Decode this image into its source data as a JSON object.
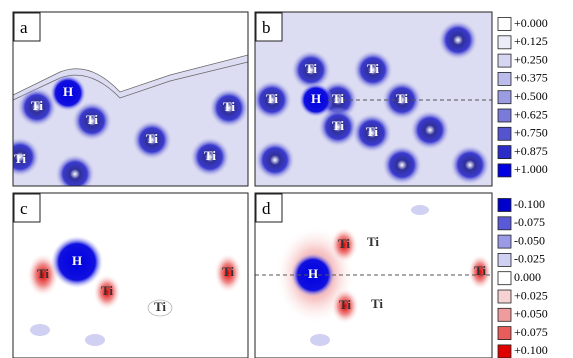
{
  "panels": [
    {
      "label": "a",
      "atoms": [
        "H",
        "Ti",
        "Ti",
        "Ti",
        "Ti",
        "Ti",
        "Ti"
      ]
    },
    {
      "label": "b",
      "atoms": [
        "H",
        "Ti",
        "Ti",
        "Ti",
        "Ti",
        "Ti",
        "Ti",
        "Ti"
      ]
    },
    {
      "label": "c",
      "atoms": [
        "H",
        "Ti",
        "Ti",
        "Ti",
        "Ti"
      ]
    },
    {
      "label": "d",
      "atoms": [
        "H",
        "Ti",
        "Ti",
        "Ti",
        "Ti",
        "Ti"
      ]
    }
  ],
  "legends": [
    {
      "items": [
        {
          "label": "+0.000",
          "color": "#ffffff"
        },
        {
          "label": "+0.125",
          "color": "#ececf9"
        },
        {
          "label": "+0.250",
          "color": "#d6d6f2"
        },
        {
          "label": "+0.375",
          "color": "#bcbcec"
        },
        {
          "label": "+0.500",
          "color": "#9c9ce2"
        },
        {
          "label": "+0.625",
          "color": "#7a7ad8"
        },
        {
          "label": "+0.750",
          "color": "#5454ce"
        },
        {
          "label": "+0.875",
          "color": "#2c2cc8"
        },
        {
          "label": "+1.000",
          "color": "#0000e0"
        }
      ]
    },
    {
      "items": [
        {
          "label": "-0.100",
          "color": "#0000cc"
        },
        {
          "label": "-0.075",
          "color": "#5a5ad8"
        },
        {
          "label": "-0.050",
          "color": "#9a9ae6"
        },
        {
          "label": "-0.025",
          "color": "#d0d0f2"
        },
        {
          "label": "0.000",
          "color": "#ffffff"
        },
        {
          "label": "+0.025",
          "color": "#f6d2d2"
        },
        {
          "label": "+0.050",
          "color": "#ef9c9c"
        },
        {
          "label": "+0.075",
          "color": "#e85c5c"
        },
        {
          "label": "+0.100",
          "color": "#e00000"
        }
      ]
    }
  ]
}
